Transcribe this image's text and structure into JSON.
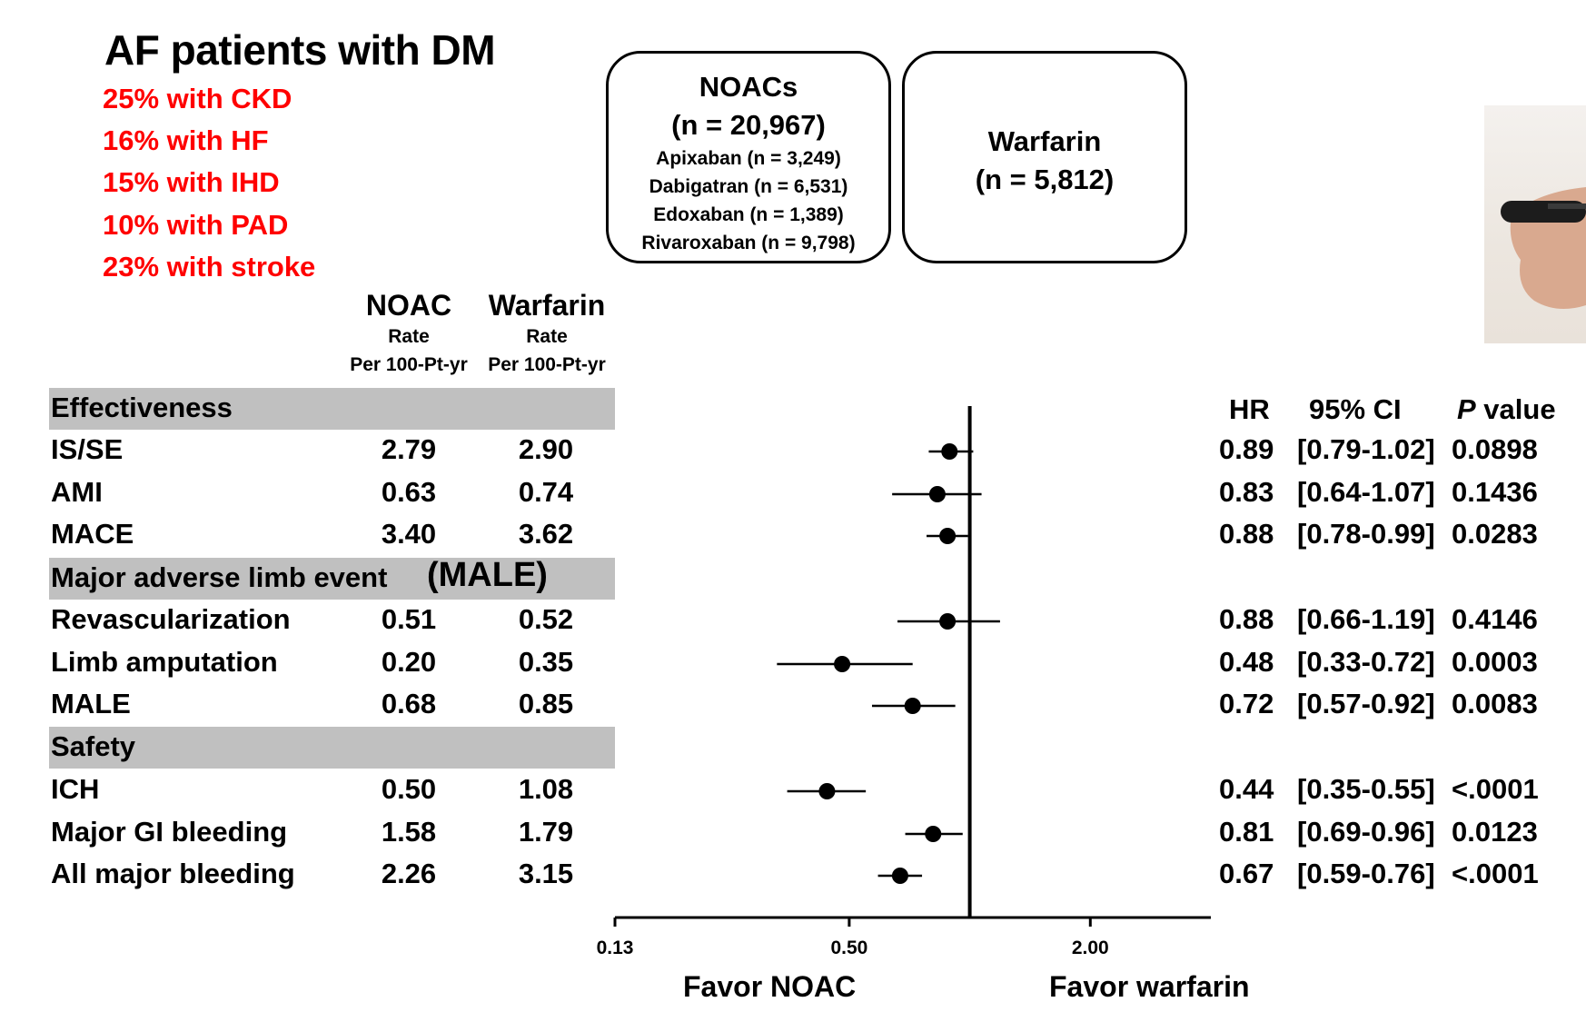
{
  "header": {
    "title": "AF patients with DM",
    "stats": [
      "25% with CKD",
      "16% with HF",
      "15% with IHD",
      "10% with PAD",
      "23% with stroke"
    ]
  },
  "boxes": {
    "noac": {
      "title": "NOACs",
      "count": "(n = 20,967)",
      "drugs": [
        "Apixaban (n = 3,249)",
        "Dabigatran (n = 6,531)",
        "Edoxaban (n = 1,389)",
        "Rivaroxaban (n = 9,798)"
      ]
    },
    "warfarin": {
      "title": "Warfarin",
      "count": "(n = 5,812)"
    }
  },
  "columns": {
    "noac_head": "NOAC",
    "warfarin_head": "Warfarin",
    "rate": "Rate",
    "per": "Per 100-Pt-yr",
    "hr": "HR",
    "ci": "95% CI",
    "p_italic": "P",
    "p_rest": " value"
  },
  "sections": [
    "Effectiveness",
    "Major adverse limb event",
    "Safety"
  ],
  "male_suffix": "(MALE)",
  "chart_data": {
    "type": "forest",
    "x_scale": "log",
    "xlim": [
      0.13,
      4.0
    ],
    "x_ticks": [
      "0.13",
      "0.50",
      "2.00"
    ],
    "reference_line": 1.0,
    "xlabel_left": "Favor NOAC",
    "xlabel_right": "Favor warfarin",
    "rows": [
      {
        "label": "IS/SE",
        "noac": "2.79",
        "warfarin": "2.90",
        "hr": 0.89,
        "lo": 0.79,
        "hi": 1.02,
        "hr_text": "0.89",
        "ci_text": "[0.79-1.02]",
        "p": "0.0898"
      },
      {
        "label": "AMI",
        "noac": "0.63",
        "warfarin": "0.74",
        "hr": 0.83,
        "lo": 0.64,
        "hi": 1.07,
        "hr_text": "0.83",
        "ci_text": "[0.64-1.07]",
        "p": "0.1436"
      },
      {
        "label": "MACE",
        "noac": "3.40",
        "warfarin": "3.62",
        "hr": 0.88,
        "lo": 0.78,
        "hi": 0.99,
        "hr_text": "0.88",
        "ci_text": "[0.78-0.99]",
        "p": "0.0283"
      },
      {
        "label": "Revascularization",
        "noac": "0.51",
        "warfarin": "0.52",
        "hr": 0.88,
        "lo": 0.66,
        "hi": 1.19,
        "hr_text": "0.88",
        "ci_text": "[0.66-1.19]",
        "p": "0.4146"
      },
      {
        "label": "Limb amputation",
        "noac": "0.20",
        "warfarin": "0.35",
        "hr": 0.48,
        "lo": 0.33,
        "hi": 0.72,
        "hr_text": "0.48",
        "ci_text": "[0.33-0.72]",
        "p": "0.0003"
      },
      {
        "label": "MALE",
        "noac": "0.68",
        "warfarin": "0.85",
        "hr": 0.72,
        "lo": 0.57,
        "hi": 0.92,
        "hr_text": "0.72",
        "ci_text": "[0.57-0.92]",
        "p": "0.0083"
      },
      {
        "label": "ICH",
        "noac": "0.50",
        "warfarin": "1.08",
        "hr": 0.44,
        "lo": 0.35,
        "hi": 0.55,
        "hr_text": "0.44",
        "ci_text": "[0.35-0.55]",
        "p": "<.0001"
      },
      {
        "label": "Major GI bleeding",
        "noac": "1.58",
        "warfarin": "1.79",
        "hr": 0.81,
        "lo": 0.69,
        "hi": 0.96,
        "hr_text": "0.81",
        "ci_text": "[0.69-0.96]",
        "p": "0.0123"
      },
      {
        "label": "All major bleeding",
        "noac": "2.26",
        "warfarin": "3.15",
        "hr": 0.67,
        "lo": 0.59,
        "hi": 0.76,
        "hr_text": "0.67",
        "ci_text": "[0.59-0.76]",
        "p": "<.0001"
      }
    ]
  }
}
